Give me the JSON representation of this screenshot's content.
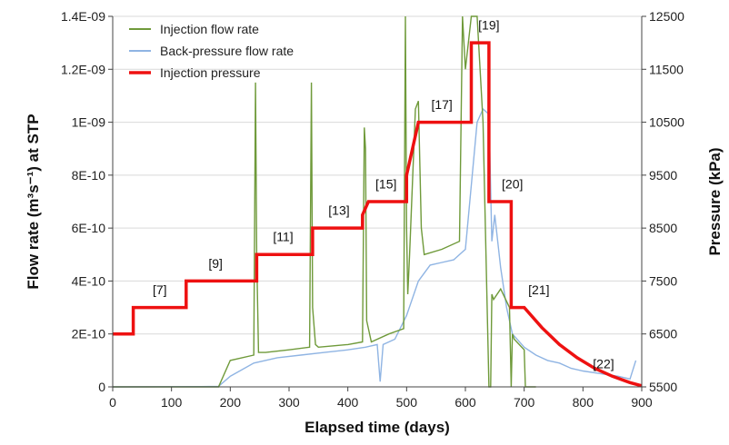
{
  "chart_data": {
    "type": "line",
    "xlabel": "Elapsed time (days)",
    "ylabel_left": "Flow rate (m³s⁻¹) at STP",
    "ylabel_right": "Pressure (kPa)",
    "xlim": [
      0,
      900
    ],
    "ylim_left": [
      0,
      1.4e-09
    ],
    "ylim_right": [
      5500,
      12500
    ],
    "x_ticks": [
      "0",
      "100",
      "200",
      "300",
      "400",
      "500",
      "600",
      "700",
      "800",
      "900"
    ],
    "x_tick_values": [
      0,
      100,
      200,
      300,
      400,
      500,
      600,
      700,
      800,
      900
    ],
    "y_left_ticks": [
      "0",
      "2E-10",
      "4E-10",
      "6E-10",
      "8E-10",
      "1E-09",
      "1.2E-09",
      "1.4E-09"
    ],
    "y_left_tick_values": [
      0,
      2e-10,
      4e-10,
      6e-10,
      8e-10,
      1e-09,
      1.2e-09,
      1.4e-09
    ],
    "y_right_ticks": [
      "5500",
      "6500",
      "7500",
      "8500",
      "9500",
      "10500",
      "11500",
      "12500"
    ],
    "y_right_tick_values": [
      5500,
      6500,
      7500,
      8500,
      9500,
      10500,
      11500,
      12500
    ],
    "legend_position": "top-left",
    "colors": {
      "injection_flow": "#6f9a3a",
      "backpressure_flow": "#8fb4e3",
      "pressure": "#ee1111"
    },
    "series": [
      {
        "name": "Injection flow rate",
        "axis": "left",
        "x": [
          0,
          180,
          200,
          240,
          243,
          245,
          248,
          260,
          300,
          335,
          338,
          340,
          345,
          350,
          400,
          425,
          428,
          430,
          432,
          440,
          470,
          495,
          498,
          500,
          502,
          505,
          515,
          520,
          525,
          530,
          560,
          590,
          595,
          600,
          610,
          615,
          620,
          630,
          640,
          643,
          645,
          648,
          660,
          675,
          678,
          680,
          683,
          700,
          702,
          710,
          720
        ],
        "values": [
          0,
          0,
          1e-10,
          1.2e-10,
          1.15e-09,
          5e-10,
          1.3e-10,
          1.3e-10,
          1.4e-10,
          1.5e-10,
          1.15e-09,
          3e-10,
          1.6e-10,
          1.5e-10,
          1.6e-10,
          1.7e-10,
          9.8e-10,
          9e-10,
          2.5e-10,
          1.7e-10,
          2e-10,
          2.2e-10,
          1.4e-09,
          6e-10,
          3.5e-10,
          5e-10,
          1.05e-09,
          1.08e-09,
          6e-10,
          5e-10,
          5.2e-10,
          5.5e-10,
          1.4e-09,
          1.2e-09,
          1.4e-09,
          1.4e-09,
          1.4e-09,
          1e-09,
          0,
          0,
          3.5e-10,
          3.3e-10,
          3.7e-10,
          3e-10,
          0,
          2e-10,
          1.8e-10,
          1.4e-10,
          0,
          0,
          0
        ]
      },
      {
        "name": "Back-pressure flow rate",
        "axis": "left",
        "x": [
          0,
          150,
          180,
          200,
          240,
          280,
          320,
          360,
          400,
          430,
          450,
          455,
          460,
          480,
          500,
          520,
          540,
          560,
          580,
          600,
          620,
          630,
          640,
          645,
          650,
          660,
          670,
          680,
          700,
          720,
          740,
          760,
          780,
          800,
          830,
          860,
          880,
          890
        ],
        "values": [
          0,
          1e-12,
          2e-12,
          4e-11,
          9e-11,
          1.1e-10,
          1.2e-10,
          1.3e-10,
          1.4e-10,
          1.5e-10,
          1.6e-10,
          2e-11,
          1.6e-10,
          1.8e-10,
          2.7e-10,
          4e-10,
          4.6e-10,
          4.7e-10,
          4.8e-10,
          5.2e-10,
          1e-09,
          1.05e-09,
          1.03e-09,
          5.5e-10,
          6.5e-10,
          4.5e-10,
          3e-10,
          2e-10,
          1.5e-10,
          1.2e-10,
          1e-10,
          9e-11,
          7e-11,
          6e-11,
          5e-11,
          4e-11,
          3e-11,
          1e-10
        ]
      },
      {
        "name": "Injection pressure",
        "axis": "right",
        "x": [
          0,
          35,
          35,
          125,
          125,
          245,
          245,
          340,
          340,
          425,
          425,
          435,
          435,
          500,
          500,
          520,
          520,
          610,
          610,
          640,
          640,
          678,
          678,
          700,
          730,
          760,
          790,
          820,
          850,
          880,
          900
        ],
        "values": [
          6500,
          6500,
          7000,
          7000,
          7500,
          7500,
          8000,
          8000,
          8500,
          8500,
          8750,
          9000,
          9000,
          9000,
          9500,
          10500,
          10500,
          10500,
          12000,
          12000,
          9000,
          9000,
          7000,
          7000,
          6620,
          6300,
          6050,
          5850,
          5700,
          5580,
          5520
        ]
      }
    ],
    "annotations": [
      {
        "text": "[7]",
        "x": 80,
        "y": 7250
      },
      {
        "text": "[9]",
        "x": 175,
        "y": 7750
      },
      {
        "text": "[11]",
        "x": 290,
        "y": 8250
      },
      {
        "text": "[13]",
        "x": 385,
        "y": 8750
      },
      {
        "text": "[15]",
        "x": 465,
        "y": 9250
      },
      {
        "text": "[17]",
        "x": 560,
        "y": 10750
      },
      {
        "text": "[19]",
        "x": 640,
        "y": 12250
      },
      {
        "text": "[20]",
        "x": 680,
        "y": 9250
      },
      {
        "text": "[21]",
        "x": 725,
        "y": 7250
      },
      {
        "text": "[22]",
        "x": 835,
        "y": 5850
      }
    ]
  }
}
